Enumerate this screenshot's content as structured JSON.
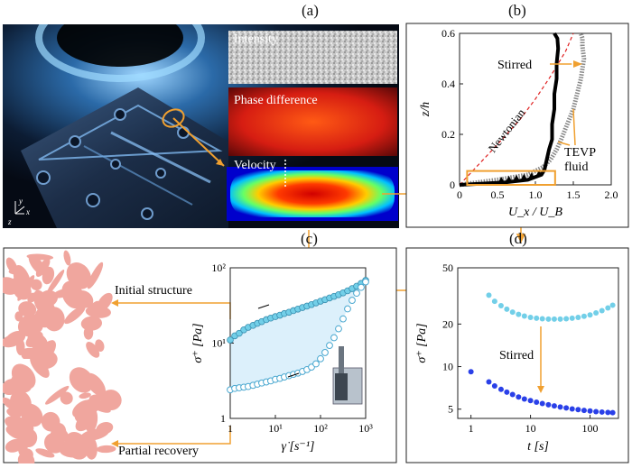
{
  "panels": {
    "a": {
      "letter": "(a)",
      "layers": [
        "Intensity",
        "Phase difference",
        "Velocity"
      ],
      "axes": {
        "x": "x",
        "y": "y",
        "z": "z"
      }
    },
    "b": {
      "letter": "(b)"
    },
    "c": {
      "letter": "(c)",
      "initial_label": "Initial structure",
      "recovery_label": "Partial recovery"
    },
    "d": {
      "letter": "(d)"
    }
  },
  "chart_data": [
    {
      "id": "b",
      "type": "line",
      "xlabel": "U_x / U_B",
      "ylabel": "z/h",
      "xlim": [
        0,
        2.0
      ],
      "ylim": [
        0,
        0.6
      ],
      "xticks": [
        "0",
        "0.5",
        "1.0",
        "1.5",
        "2.0"
      ],
      "yticks": [
        "0",
        "0.2",
        "0.4",
        "0.6"
      ],
      "annotations": [
        "Stirred",
        "Newtonian",
        "TEVP",
        "fluid"
      ],
      "series": [
        {
          "style": "red-dashed",
          "x": [
            0.0,
            0.25,
            0.5,
            0.8,
            1.0,
            1.2,
            1.4,
            1.5
          ],
          "y": [
            0.0,
            0.08,
            0.16,
            0.26,
            0.34,
            0.43,
            0.53,
            0.6
          ]
        },
        {
          "style": "black-thick",
          "x": [
            0.0,
            0.6,
            0.9,
            1.08,
            1.12,
            1.15,
            1.18,
            1.22,
            1.22,
            1.25,
            1.25,
            1.28,
            1.28,
            1.3,
            1.29,
            1.25
          ],
          "y": [
            0.0,
            0.01,
            0.02,
            0.04,
            0.06,
            0.1,
            0.14,
            0.18,
            0.24,
            0.3,
            0.36,
            0.42,
            0.48,
            0.54,
            0.58,
            0.6
          ]
        },
        {
          "style": "grey-markers",
          "x": [
            0.0,
            0.5,
            0.9,
            1.1,
            1.2,
            1.28,
            1.34,
            1.42,
            1.5,
            1.55,
            1.6,
            1.62,
            1.64,
            1.62,
            1.62,
            1.6
          ],
          "y": [
            0.0,
            0.02,
            0.04,
            0.07,
            0.1,
            0.14,
            0.18,
            0.24,
            0.3,
            0.36,
            0.42,
            0.46,
            0.5,
            0.55,
            0.58,
            0.6
          ]
        },
        {
          "style": "black-triangles",
          "x": [
            0.55,
            0.65,
            0.75,
            0.85,
            0.95,
            1.05
          ],
          "y": [
            0.018,
            0.022,
            0.026,
            0.03,
            0.035,
            0.045
          ]
        }
      ]
    },
    {
      "id": "c",
      "type": "scatter",
      "xlabel": "γ̇ [s⁻¹]",
      "ylabel": "σ⁺ [Pa]",
      "xscale": "log",
      "yscale": "log",
      "xlim": [
        1,
        1000
      ],
      "ylim": [
        1,
        100
      ],
      "xticks": [
        "1",
        "10¹",
        "10²",
        "10³"
      ],
      "yticks": [
        "1",
        "10¹",
        "10²"
      ],
      "series": [
        {
          "style": "filled",
          "x": [
            1.0,
            1.26,
            1.58,
            2.0,
            2.5,
            3.2,
            4.0,
            5.0,
            6.3,
            7.9,
            10.0,
            12.6,
            15.8,
            20.0,
            25.1,
            31.6,
            39.8,
            50.1,
            63.1,
            79.4,
            100.0,
            125.9,
            158.5,
            199.5,
            251.2,
            316.2,
            398.1,
            501.2,
            631.0,
            794.3,
            1000.0
          ],
          "y": [
            11,
            12.5,
            13.5,
            15,
            16.2,
            17.2,
            18.3,
            19.3,
            20.5,
            21.5,
            22.5,
            23.5,
            24.7,
            25.7,
            27,
            28.3,
            29.7,
            31,
            32.5,
            34.2,
            36,
            37.8,
            39.8,
            41.8,
            44,
            46.5,
            49.5,
            53,
            57,
            62,
            68
          ]
        },
        {
          "style": "open",
          "x": [
            1.0,
            1.26,
            1.58,
            2.0,
            2.5,
            3.2,
            4.0,
            5.0,
            6.3,
            7.9,
            10.0,
            12.6,
            15.8,
            20.0,
            25.1,
            31.6,
            39.8,
            50.1,
            63.1,
            79.4,
            100.0,
            125.9,
            158.5,
            199.5,
            251.2,
            316.2,
            398.1,
            501.2,
            631.0,
            794.3,
            1000.0
          ],
          "y": [
            2.4,
            2.5,
            2.55,
            2.6,
            2.65,
            2.75,
            2.85,
            2.95,
            3.05,
            3.15,
            3.3,
            3.4,
            3.55,
            3.7,
            3.85,
            4.0,
            4.2,
            4.45,
            4.8,
            5.3,
            6.2,
            7.5,
            9.3,
            11.8,
            15.5,
            21,
            28.5,
            37,
            46,
            55,
            65
          ]
        }
      ]
    },
    {
      "id": "d",
      "type": "scatter",
      "xlabel": "t [s]",
      "ylabel": "σ⁺ [Pa]",
      "xscale": "log",
      "yscale": "log",
      "xlim": [
        0.6,
        300
      ],
      "ylim": [
        4.3,
        50
      ],
      "xticks": [
        "1",
        "10",
        "100"
      ],
      "yticks": [
        "5",
        "10",
        "20",
        "50"
      ],
      "annotations": [
        "Stirred"
      ],
      "series": [
        {
          "style": "light",
          "x": [
            2.0,
            2.5,
            3.2,
            4.0,
            5.0,
            6.3,
            7.9,
            10,
            12.6,
            15.8,
            20,
            25.1,
            31.6,
            39.8,
            50.1,
            63.1,
            79.4,
            100,
            125.9,
            158.5,
            199.5,
            240
          ],
          "y": [
            32,
            29,
            27,
            25.5,
            24.3,
            23.4,
            22.8,
            22.3,
            22.0,
            21.8,
            21.7,
            21.7,
            21.7,
            21.8,
            22.0,
            22.3,
            22.7,
            23.2,
            24.0,
            24.9,
            26.0,
            27.2
          ]
        },
        {
          "style": "dark",
          "x": [
            1.0,
            2.0,
            2.5,
            3.2,
            4.0,
            5.0,
            6.3,
            7.9,
            10,
            12.6,
            15.8,
            20,
            25.1,
            31.6,
            39.8,
            50.1,
            63.1,
            79.4,
            100,
            125.9,
            158.5,
            199.5,
            240
          ],
          "y": [
            9.2,
            7.8,
            7.3,
            6.9,
            6.6,
            6.35,
            6.1,
            5.9,
            5.75,
            5.6,
            5.48,
            5.37,
            5.27,
            5.18,
            5.1,
            5.02,
            4.96,
            4.9,
            4.85,
            4.8,
            4.77,
            4.74,
            4.72
          ]
        }
      ]
    }
  ],
  "colors": {
    "orange": "#f0a030",
    "light_blue": "#72cfe8",
    "dark_blue": "#2a40e8",
    "pink": "#f0a69e"
  }
}
